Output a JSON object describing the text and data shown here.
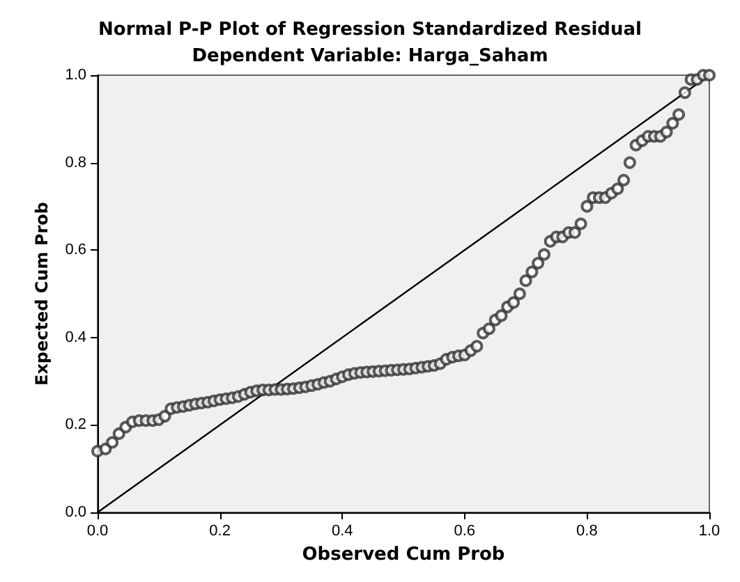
{
  "chart_data": {
    "type": "scatter",
    "title": "Normal P-P Plot of Regression Standardized Residual",
    "subtitle": "Dependent Variable: Harga_Saham",
    "xlabel": "Observed Cum Prob",
    "ylabel": "Expected Cum Prob",
    "xlim": [
      0,
      1
    ],
    "ylim": [
      0,
      1
    ],
    "xticks": [
      {
        "value": 0,
        "label": "0.0"
      },
      {
        "value": 0.2,
        "label": "0.2"
      },
      {
        "value": 0.4,
        "label": "0.4"
      },
      {
        "value": 0.6,
        "label": "0.6"
      },
      {
        "value": 0.8,
        "label": "0.8"
      },
      {
        "value": 1,
        "label": "1.0"
      }
    ],
    "yticks": [
      {
        "value": 0,
        "label": "0.0"
      },
      {
        "value": 0.2,
        "label": "0.2"
      },
      {
        "value": 0.4,
        "label": "0.4"
      },
      {
        "value": 0.6,
        "label": "0.6"
      },
      {
        "value": 0.8,
        "label": "0.8"
      },
      {
        "value": 1,
        "label": "1.0"
      }
    ],
    "grid": false,
    "marker": "circle",
    "series": [
      {
        "color": "#333333",
        "x": [
          0.0,
          0.013,
          0.024,
          0.035,
          0.046,
          0.057,
          0.068,
          0.079,
          0.09,
          0.1,
          0.11,
          0.12,
          0.13,
          0.14,
          0.15,
          0.16,
          0.17,
          0.18,
          0.19,
          0.2,
          0.21,
          0.22,
          0.23,
          0.24,
          0.25,
          0.26,
          0.27,
          0.28,
          0.29,
          0.3,
          0.31,
          0.32,
          0.33,
          0.34,
          0.35,
          0.36,
          0.37,
          0.38,
          0.39,
          0.4,
          0.41,
          0.42,
          0.43,
          0.44,
          0.45,
          0.46,
          0.47,
          0.48,
          0.49,
          0.5,
          0.51,
          0.52,
          0.53,
          0.54,
          0.55,
          0.56,
          0.57,
          0.58,
          0.59,
          0.6,
          0.61,
          0.62,
          0.63,
          0.64,
          0.65,
          0.66,
          0.67,
          0.68,
          0.69,
          0.7,
          0.71,
          0.72,
          0.73,
          0.74,
          0.75,
          0.76,
          0.77,
          0.78,
          0.79,
          0.8,
          0.81,
          0.82,
          0.83,
          0.84,
          0.85,
          0.86,
          0.87,
          0.88,
          0.89,
          0.9,
          0.91,
          0.92,
          0.93,
          0.94,
          0.95,
          0.96,
          0.97,
          0.98,
          0.99,
          1.0
        ],
        "values": [
          0.14,
          0.145,
          0.16,
          0.18,
          0.195,
          0.207,
          0.21,
          0.21,
          0.21,
          0.212,
          0.22,
          0.237,
          0.24,
          0.242,
          0.245,
          0.248,
          0.25,
          0.252,
          0.255,
          0.258,
          0.26,
          0.262,
          0.265,
          0.27,
          0.275,
          0.278,
          0.28,
          0.28,
          0.281,
          0.281,
          0.282,
          0.283,
          0.285,
          0.287,
          0.29,
          0.293,
          0.297,
          0.3,
          0.305,
          0.31,
          0.315,
          0.318,
          0.32,
          0.321,
          0.322,
          0.323,
          0.324,
          0.325,
          0.326,
          0.327,
          0.328,
          0.33,
          0.332,
          0.334,
          0.336,
          0.34,
          0.35,
          0.355,
          0.358,
          0.36,
          0.37,
          0.38,
          0.41,
          0.42,
          0.44,
          0.45,
          0.47,
          0.48,
          0.5,
          0.53,
          0.55,
          0.57,
          0.59,
          0.62,
          0.63,
          0.63,
          0.64,
          0.64,
          0.66,
          0.7,
          0.72,
          0.72,
          0.72,
          0.73,
          0.74,
          0.76,
          0.8,
          0.84,
          0.85,
          0.86,
          0.86,
          0.86,
          0.87,
          0.89,
          0.91,
          0.96,
          0.99,
          0.99,
          1.0,
          1.0
        ]
      },
      {
        "type": "line",
        "color": "#000000",
        "x": [
          0,
          1
        ],
        "values": [
          0,
          1
        ],
        "marker": "none"
      }
    ]
  }
}
